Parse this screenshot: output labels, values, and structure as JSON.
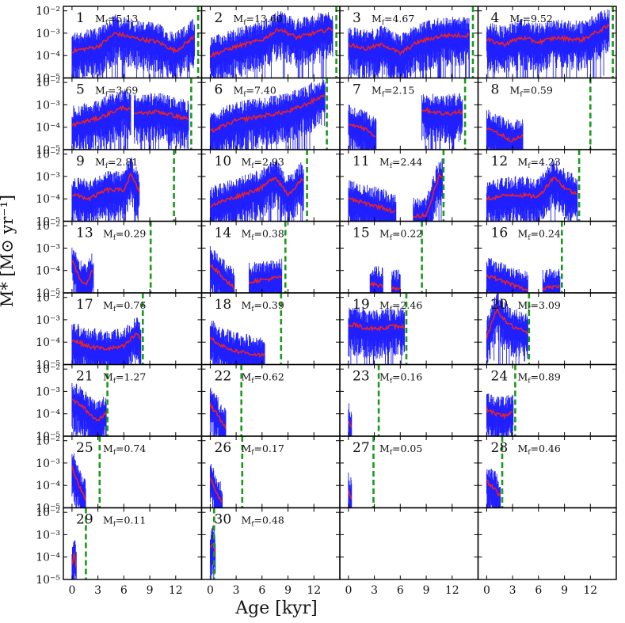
{
  "chart_data": {
    "type": "line",
    "title": "",
    "xlabel": "Age [kyr]",
    "ylabel": "Ṁ* [M⊙ yr⁻¹]",
    "xlim": [
      -1,
      15
    ],
    "ylim_log10": [
      -5,
      -1.8
    ],
    "x_ticks": [
      0,
      3,
      6,
      9,
      12
    ],
    "x_tick_labels": [
      "0",
      "3",
      "6",
      "9",
      "12"
    ],
    "y_ticks_log10": [
      -5,
      -4,
      -3,
      -2
    ],
    "y_tick_labels": [
      "10⁻⁵",
      "10⁻⁴",
      "10⁻³",
      "10⁻²"
    ],
    "grid": false,
    "series_styles": {
      "raw_rate": "#1f1fff",
      "smoothed_rate": "#ee2222",
      "formation_end_marker": "#1a9a1a"
    },
    "panels": [
      {
        "id": "1",
        "mf_prefix": "M",
        "mf_sub": "f",
        "mf_value": "=5.13",
        "t_end": 14.6,
        "segments": [
          [
            0,
            14.2
          ]
        ],
        "levels": [
          [
            0,
            -3.8
          ],
          [
            3,
            -3.6
          ],
          [
            5,
            -3.0
          ],
          [
            7,
            -3.2
          ],
          [
            10,
            -3.4
          ],
          [
            12,
            -3.8
          ],
          [
            14,
            -3.2
          ]
        ]
      },
      {
        "id": "2",
        "mf_prefix": "M",
        "mf_sub": "f",
        "mf_value": "=13.60",
        "t_end": 14.6,
        "segments": [
          [
            0,
            14.2
          ]
        ],
        "levels": [
          [
            0,
            -4.0
          ],
          [
            3,
            -3.6
          ],
          [
            6,
            -3.3
          ],
          [
            8,
            -2.8
          ],
          [
            10,
            -3.2
          ],
          [
            12,
            -3.0
          ],
          [
            14,
            -2.8
          ]
        ]
      },
      {
        "id": "3",
        "mf_prefix": "M",
        "mf_sub": "f",
        "mf_value": "=4.67",
        "t_end": 14.4,
        "segments": [
          [
            0,
            14.0
          ]
        ],
        "levels": [
          [
            0,
            -3.5
          ],
          [
            2,
            -3.7
          ],
          [
            4,
            -3.5
          ],
          [
            6,
            -3.9
          ],
          [
            8,
            -3.4
          ],
          [
            11,
            -3.1
          ],
          [
            14,
            -3.1
          ]
        ]
      },
      {
        "id": "4",
        "mf_prefix": "M",
        "mf_sub": "f",
        "mf_value": "=9.52",
        "t_end": 14.6,
        "segments": [
          [
            0,
            14.2
          ]
        ],
        "levels": [
          [
            0,
            -3.3
          ],
          [
            2,
            -3.5
          ],
          [
            4,
            -3.2
          ],
          [
            6,
            -3.4
          ],
          [
            8,
            -3.2
          ],
          [
            11,
            -3.3
          ],
          [
            14,
            -2.7
          ]
        ]
      },
      {
        "id": "5",
        "mf_prefix": "M",
        "mf_sub": "f",
        "mf_value": "=3.69",
        "t_end": 13.8,
        "segments": [
          [
            0,
            6.8
          ],
          [
            7.2,
            13.5
          ]
        ],
        "levels": [
          [
            0,
            -3.9
          ],
          [
            3,
            -3.6
          ],
          [
            6,
            -3.1
          ],
          [
            7.5,
            -3.4
          ],
          [
            10,
            -3.3
          ],
          [
            13,
            -3.6
          ]
        ]
      },
      {
        "id": "6",
        "mf_prefix": "M",
        "mf_sub": "f",
        "mf_value": "=7.40",
        "t_end": 13.5,
        "segments": [
          [
            0,
            13.3
          ]
        ],
        "levels": [
          [
            0,
            -4.2
          ],
          [
            3,
            -3.7
          ],
          [
            6,
            -3.5
          ],
          [
            9,
            -3.3
          ],
          [
            11,
            -3.0
          ],
          [
            13,
            -2.6
          ]
        ]
      },
      {
        "id": "7",
        "mf_prefix": "M",
        "mf_sub": "f",
        "mf_value": "=2.15",
        "t_end": 13.5,
        "segments": [
          [
            0,
            3.2
          ],
          [
            8.5,
            13.2
          ]
        ],
        "levels": [
          [
            0,
            -3.8
          ],
          [
            2,
            -4.1
          ],
          [
            3,
            -4.4
          ],
          [
            8.5,
            -3.2
          ],
          [
            11,
            -3.4
          ],
          [
            13,
            -3.3
          ]
        ]
      },
      {
        "id": "8",
        "mf_prefix": "M",
        "mf_sub": "f",
        "mf_value": "=0.59",
        "t_end": 12.0,
        "segments": [
          [
            0,
            4.2
          ]
        ],
        "levels": [
          [
            0,
            -4.0
          ],
          [
            1.5,
            -4.3
          ],
          [
            3,
            -4.6
          ],
          [
            4,
            -4.4
          ]
        ]
      },
      {
        "id": "9",
        "mf_prefix": "M",
        "mf_sub": "f",
        "mf_value": "=2.81",
        "t_end": 11.8,
        "segments": [
          [
            0,
            7.8
          ]
        ],
        "levels": [
          [
            0,
            -3.8
          ],
          [
            2,
            -4.0
          ],
          [
            4,
            -3.6
          ],
          [
            6,
            -3.6
          ],
          [
            6.8,
            -2.9
          ],
          [
            7.8,
            -3.7
          ]
        ]
      },
      {
        "id": "10",
        "mf_prefix": "M",
        "mf_sub": "f",
        "mf_value": "=2.93",
        "t_end": 11.2,
        "segments": [
          [
            0,
            10.8
          ]
        ],
        "levels": [
          [
            0,
            -4.3
          ],
          [
            3,
            -3.9
          ],
          [
            6,
            -3.5
          ],
          [
            7.5,
            -3.0
          ],
          [
            9,
            -3.8
          ],
          [
            10.5,
            -3.2
          ]
        ]
      },
      {
        "id": "11",
        "mf_prefix": "M",
        "mf_sub": "f",
        "mf_value": "=2.44",
        "t_end": 11.0,
        "segments": [
          [
            0,
            5.5
          ],
          [
            7.5,
            10.9
          ]
        ],
        "levels": [
          [
            0,
            -4.0
          ],
          [
            2,
            -4.2
          ],
          [
            4,
            -4.4
          ],
          [
            5.5,
            -4.6
          ],
          [
            7.5,
            -4.8
          ],
          [
            9,
            -4.7
          ],
          [
            10.5,
            -3.0
          ]
        ]
      },
      {
        "id": "12",
        "mf_prefix": "M",
        "mf_sub": "f",
        "mf_value": "=4.23",
        "t_end": 10.7,
        "segments": [
          [
            0,
            10.5
          ]
        ],
        "levels": [
          [
            0,
            -4.0
          ],
          [
            3,
            -3.8
          ],
          [
            6,
            -3.9
          ],
          [
            7.8,
            -3.0
          ],
          [
            9,
            -3.5
          ],
          [
            10.4,
            -3.8
          ]
        ]
      },
      {
        "id": "13",
        "mf_prefix": "M",
        "mf_sub": "f",
        "mf_value": "=0.29",
        "t_end": 9.1,
        "segments": [
          [
            0,
            2.5
          ]
        ],
        "levels": [
          [
            0,
            -3.5
          ],
          [
            0.8,
            -4.3
          ],
          [
            1.6,
            -4.6
          ],
          [
            2.4,
            -4.0
          ]
        ]
      },
      {
        "id": "14",
        "mf_prefix": "M",
        "mf_sub": "f",
        "mf_value": "=0.38",
        "t_end": 8.7,
        "segments": [
          [
            0,
            2.8
          ],
          [
            4.5,
            8.3
          ]
        ],
        "levels": [
          [
            0,
            -3.7
          ],
          [
            1.5,
            -4.3
          ],
          [
            2.8,
            -4.8
          ],
          [
            4.5,
            -4.5
          ],
          [
            8.3,
            -4.3
          ]
        ]
      },
      {
        "id": "15",
        "mf_prefix": "M",
        "mf_sub": "f",
        "mf_value": "=0.22",
        "t_end": 8.5,
        "segments": [
          [
            2.5,
            4.0
          ],
          [
            5.0,
            6.0
          ]
        ],
        "levels": [
          [
            2.5,
            -4.6
          ],
          [
            4.0,
            -4.7
          ],
          [
            5.0,
            -4.8
          ],
          [
            6.0,
            -4.8
          ]
        ]
      },
      {
        "id": "16",
        "mf_prefix": "M",
        "mf_sub": "f",
        "mf_value": "=0.24",
        "t_end": 8.7,
        "segments": [
          [
            0,
            4.8
          ],
          [
            6.5,
            8.5
          ]
        ],
        "levels": [
          [
            0,
            -4.2
          ],
          [
            2,
            -4.5
          ],
          [
            4.8,
            -4.9
          ],
          [
            6.5,
            -4.8
          ],
          [
            8.5,
            -4.7
          ]
        ]
      },
      {
        "id": "17",
        "mf_prefix": "M",
        "mf_sub": "f",
        "mf_value": "=0.76",
        "t_end": 8.2,
        "segments": [
          [
            0,
            8.0
          ]
        ],
        "levels": [
          [
            0,
            -3.9
          ],
          [
            2,
            -4.2
          ],
          [
            4,
            -4.3
          ],
          [
            6,
            -4.2
          ],
          [
            7.5,
            -3.6
          ],
          [
            8.0,
            -3.9
          ]
        ]
      },
      {
        "id": "18",
        "mf_prefix": "M",
        "mf_sub": "f",
        "mf_value": "=0.39",
        "t_end": 8.2,
        "segments": [
          [
            0,
            6.3
          ]
        ],
        "levels": [
          [
            0,
            -3.8
          ],
          [
            1.5,
            -4.2
          ],
          [
            3,
            -4.4
          ],
          [
            4.5,
            -4.5
          ],
          [
            6.3,
            -4.6
          ]
        ]
      },
      {
        "id": "19",
        "mf_prefix": "M",
        "mf_sub": "f",
        "mf_value": "=2.46",
        "t_end": 6.7,
        "segments": [
          [
            0,
            6.5
          ]
        ],
        "levels": [
          [
            0,
            -3.3
          ],
          [
            1,
            -3.2
          ],
          [
            2,
            -3.4
          ],
          [
            3,
            -3.4
          ],
          [
            5,
            -3.3
          ],
          [
            6.3,
            -3.3
          ]
        ]
      },
      {
        "id": "20",
        "mf_prefix": "M",
        "mf_sub": "f",
        "mf_value": "=3.09",
        "t_end": 4.9,
        "segments": [
          [
            0,
            4.8
          ]
        ],
        "levels": [
          [
            0,
            -3.8
          ],
          [
            1.2,
            -2.5
          ],
          [
            2,
            -3.0
          ],
          [
            3,
            -3.3
          ],
          [
            4.8,
            -3.6
          ]
        ]
      },
      {
        "id": "21",
        "mf_prefix": "M",
        "mf_sub": "f",
        "mf_value": "=1.27",
        "t_end": 4.1,
        "segments": [
          [
            0,
            4.0
          ]
        ],
        "levels": [
          [
            0,
            -3.4
          ],
          [
            1,
            -3.6
          ],
          [
            2,
            -4.0
          ],
          [
            3,
            -4.3
          ],
          [
            4.0,
            -3.9
          ]
        ]
      },
      {
        "id": "22",
        "mf_prefix": "M",
        "mf_sub": "f",
        "mf_value": "=0.62",
        "t_end": 3.6,
        "segments": [
          [
            0,
            1.8
          ]
        ],
        "levels": [
          [
            0,
            -3.6
          ],
          [
            0.9,
            -4.1
          ],
          [
            1.8,
            -4.6
          ]
        ]
      },
      {
        "id": "23",
        "mf_prefix": "M",
        "mf_sub": "f",
        "mf_value": "=0.16",
        "t_end": 3.5,
        "segments": [
          [
            0,
            0.4
          ]
        ],
        "levels": [
          [
            0,
            -4.3
          ],
          [
            0.4,
            -4.6
          ]
        ]
      },
      {
        "id": "24",
        "mf_prefix": "M",
        "mf_sub": "f",
        "mf_value": "=0.89",
        "t_end": 3.3,
        "segments": [
          [
            0,
            3.1
          ]
        ],
        "levels": [
          [
            0,
            -3.8
          ],
          [
            1,
            -4.0
          ],
          [
            2,
            -4.1
          ],
          [
            3,
            -3.9
          ]
        ]
      },
      {
        "id": "25",
        "mf_prefix": "M",
        "mf_sub": "f",
        "mf_value": "=0.74",
        "t_end": 3.2,
        "segments": [
          [
            0,
            1.6
          ]
        ],
        "levels": [
          [
            0,
            -3.2
          ],
          [
            0.8,
            -4.0
          ],
          [
            1.6,
            -4.6
          ]
        ]
      },
      {
        "id": "26",
        "mf_prefix": "M",
        "mf_sub": "f",
        "mf_value": "=0.17",
        "t_end": 3.7,
        "segments": [
          [
            0,
            1.4
          ]
        ],
        "levels": [
          [
            0,
            -3.6
          ],
          [
            0.6,
            -4.3
          ],
          [
            1.4,
            -4.8
          ]
        ]
      },
      {
        "id": "27",
        "mf_prefix": "M",
        "mf_sub": "f",
        "mf_value": "=0.05",
        "t_end": 2.9,
        "segments": [
          [
            0,
            0.4
          ]
        ],
        "levels": [
          [
            0,
            -4.2
          ],
          [
            0.4,
            -4.6
          ]
        ]
      },
      {
        "id": "28",
        "mf_prefix": "M",
        "mf_sub": "f",
        "mf_value": "=0.46",
        "t_end": 1.8,
        "segments": [
          [
            0,
            1.6
          ]
        ],
        "levels": [
          [
            0,
            -3.8
          ],
          [
            0.8,
            -4.1
          ],
          [
            1.6,
            -4.5
          ]
        ]
      },
      {
        "id": "29",
        "mf_prefix": "M",
        "mf_sub": "f",
        "mf_value": "=0.11",
        "t_end": 1.6,
        "segments": [
          [
            0,
            0.5
          ]
        ],
        "levels": [
          [
            0,
            -4.3
          ],
          [
            0.3,
            -3.7
          ],
          [
            0.5,
            -4.6
          ]
        ]
      },
      {
        "id": "30",
        "mf_prefix": "M",
        "mf_sub": "f",
        "mf_value": "=0.48",
        "t_end": 0.45,
        "segments": [
          [
            0,
            0.6
          ]
        ],
        "levels": [
          [
            0,
            -3.6
          ],
          [
            0.3,
            -3.4
          ],
          [
            0.6,
            -3.8
          ]
        ]
      },
      {
        "id": "31",
        "mf_prefix": "",
        "mf_sub": "",
        "mf_value": "",
        "t_end": null,
        "segments": [],
        "levels": []
      },
      {
        "id": "32",
        "mf_prefix": "",
        "mf_sub": "",
        "mf_value": "",
        "t_end": null,
        "segments": [],
        "levels": []
      }
    ]
  }
}
